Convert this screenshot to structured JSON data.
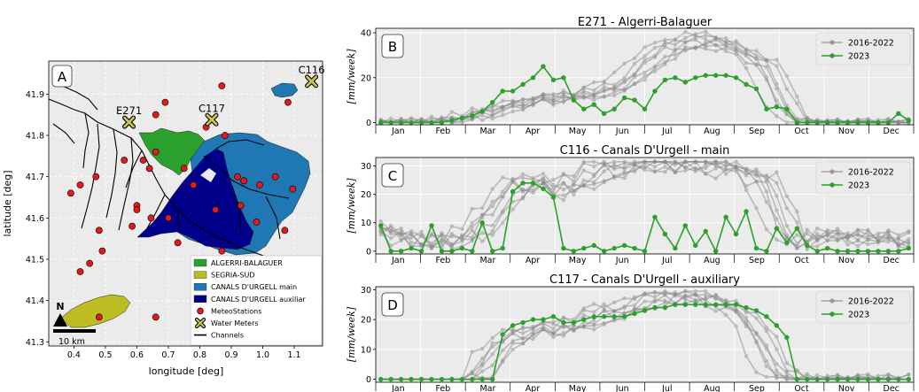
{
  "colors": {
    "history": "#888888",
    "year2023": "#2ca02c",
    "algerri": "#2ca02c",
    "segria": "#bcbd22",
    "urgell_main": "#1f77b4",
    "urgell_aux": "#00008b",
    "meteo": "#e31a1c",
    "meter": "#c8c84b",
    "panel_bg": "#ebebeb"
  },
  "map": {
    "panel_label": "A",
    "xlabel": "longitude [deg]",
    "ylabel": "latitude [deg]",
    "xlim": [
      0.32,
      1.19
    ],
    "ylim": [
      41.29,
      41.98
    ],
    "xticks": [
      "0.4",
      "0.5",
      "0.6",
      "0.7",
      "0.8",
      "0.9",
      "1.0",
      "1.1"
    ],
    "yticks": [
      "41.3",
      "41.4",
      "41.5",
      "41.6",
      "41.7",
      "41.8",
      "41.9"
    ],
    "scalebar": "10 km",
    "north": "N",
    "sites": [
      {
        "label": "E271",
        "lon": 0.575,
        "lat": 41.832
      },
      {
        "label": "C117",
        "lon": 0.838,
        "lat": 41.838
      },
      {
        "label": "C116",
        "lon": 1.155,
        "lat": 41.931
      }
    ],
    "meteo_stations": [
      [
        0.39,
        41.66
      ],
      [
        0.42,
        41.68
      ],
      [
        0.56,
        41.74
      ],
      [
        0.47,
        41.7
      ],
      [
        0.45,
        41.49
      ],
      [
        0.42,
        41.47
      ],
      [
        0.48,
        41.57
      ],
      [
        0.49,
        41.52
      ],
      [
        0.585,
        41.58
      ],
      [
        0.6,
        41.63
      ],
      [
        0.62,
        41.74
      ],
      [
        0.66,
        41.76
      ],
      [
        0.66,
        41.85
      ],
      [
        0.69,
        41.88
      ],
      [
        0.645,
        41.6
      ],
      [
        0.64,
        41.72
      ],
      [
        0.82,
        41.82
      ],
      [
        0.87,
        41.92
      ],
      [
        0.92,
        41.7
      ],
      [
        0.94,
        41.69
      ],
      [
        0.99,
        41.68
      ],
      [
        1.04,
        41.7
      ],
      [
        1.08,
        41.88
      ],
      [
        1.095,
        41.67
      ],
      [
        1.07,
        41.57
      ],
      [
        0.93,
        41.63
      ],
      [
        0.98,
        41.59
      ],
      [
        0.85,
        41.62
      ],
      [
        0.78,
        41.68
      ],
      [
        0.75,
        41.72
      ],
      [
        0.73,
        41.54
      ],
      [
        0.87,
        41.52
      ],
      [
        0.66,
        41.36
      ],
      [
        0.48,
        41.36
      ],
      [
        0.88,
        41.8
      ],
      [
        0.7,
        41.6
      ],
      [
        0.6,
        41.62
      ]
    ],
    "legend": [
      {
        "label": "ALGERRI-BALAGUER",
        "kind": "patch",
        "color": "#2ca02c"
      },
      {
        "label": "SEGRIA-SUD",
        "kind": "patch",
        "color": "#bcbd22"
      },
      {
        "label": "CANALS D'URGELL main",
        "kind": "patch",
        "color": "#1f77b4"
      },
      {
        "label": "CANALS D'URGELL auxiliar",
        "kind": "patch",
        "color": "#00008b"
      },
      {
        "label": "MeteoStations",
        "kind": "dot",
        "color": "#e31a1c"
      },
      {
        "label": "Water Meters",
        "kind": "x",
        "color": "#c8c84b"
      },
      {
        "label": "Channels",
        "kind": "line",
        "color": "#000000"
      }
    ]
  },
  "chart_data": [
    {
      "type": "line",
      "panel_label": "B",
      "title": "E271 - Algerri-Balaguer",
      "ylabel": "[mm/week]",
      "months": [
        "Jan",
        "Feb",
        "Mar",
        "Apr",
        "May",
        "Jun",
        "Jul",
        "Aug",
        "Sep",
        "Oct",
        "Nov",
        "Dec"
      ],
      "ylim": [
        -1,
        42
      ],
      "yticks": [
        0,
        20,
        40
      ],
      "legend": [
        "2016-2022",
        "2023"
      ],
      "history_count": 7,
      "anchors": [
        [
          1,
          0
        ],
        [
          3,
          0
        ],
        [
          5,
          0
        ],
        [
          7,
          1
        ],
        [
          9,
          2
        ],
        [
          11,
          4
        ],
        [
          13,
          7
        ],
        [
          15,
          9
        ],
        [
          17,
          10
        ],
        [
          19,
          12
        ],
        [
          21,
          13
        ],
        [
          23,
          14
        ],
        [
          25,
          19
        ],
        [
          27,
          26
        ],
        [
          29,
          33
        ],
        [
          31,
          36
        ],
        [
          33,
          37
        ],
        [
          35,
          35
        ],
        [
          37,
          30
        ],
        [
          39,
          24
        ],
        [
          40,
          12
        ],
        [
          41,
          4
        ],
        [
          42,
          1
        ],
        [
          44,
          0
        ],
        [
          48,
          0
        ],
        [
          52,
          0
        ]
      ],
      "series_2023": [
        0,
        0,
        0,
        0,
        0,
        0,
        0,
        1,
        2,
        3,
        5,
        9,
        14,
        14,
        17,
        20,
        25,
        19,
        20,
        10,
        6,
        8,
        4,
        6,
        11,
        10,
        6,
        14,
        19,
        20,
        18,
        20,
        21,
        21,
        21,
        20,
        17,
        15,
        6,
        7,
        6,
        0,
        0,
        0,
        0,
        0,
        0,
        0,
        0,
        0,
        0,
        4,
        1
      ]
    },
    {
      "type": "line",
      "panel_label": "C",
      "title": "C116 - Canals D'Urgell - main",
      "ylabel": "[mm/week]",
      "months": [
        "Jan",
        "Feb",
        "Mar",
        "Apr",
        "May",
        "Jun",
        "Jul",
        "Aug",
        "Sep",
        "Oct",
        "Nov",
        "Dec"
      ],
      "ylim": [
        -1,
        33
      ],
      "yticks": [
        0,
        10,
        20,
        30
      ],
      "legend": [
        "2016-2022",
        "2023"
      ],
      "history_count": 7,
      "anchors": [
        [
          1,
          8
        ],
        [
          2,
          6
        ],
        [
          4,
          4
        ],
        [
          6,
          4
        ],
        [
          8,
          4
        ],
        [
          10,
          6
        ],
        [
          12,
          14
        ],
        [
          14,
          24
        ],
        [
          16,
          24
        ],
        [
          18,
          21
        ],
        [
          20,
          25
        ],
        [
          22,
          28
        ],
        [
          24,
          30
        ],
        [
          26,
          31
        ],
        [
          28,
          31
        ],
        [
          30,
          31
        ],
        [
          32,
          31
        ],
        [
          34,
          30
        ],
        [
          36,
          29
        ],
        [
          38,
          26
        ],
        [
          39,
          22
        ],
        [
          40,
          14
        ],
        [
          41,
          4
        ],
        [
          42,
          2
        ],
        [
          43,
          5
        ],
        [
          45,
          6
        ],
        [
          47,
          5
        ],
        [
          49,
          5
        ],
        [
          51,
          5
        ],
        [
          52,
          4
        ]
      ],
      "series_2023": [
        9,
        0,
        0,
        1,
        0,
        9,
        0,
        0,
        1,
        0,
        10,
        0,
        1,
        21,
        24,
        24,
        22,
        19,
        1,
        0,
        1,
        2,
        0,
        1,
        2,
        1,
        0,
        12,
        6,
        1,
        9,
        2,
        7,
        0,
        12,
        6,
        14,
        1,
        0,
        8,
        3,
        8,
        2,
        0,
        1,
        0,
        0,
        0,
        0,
        0,
        0,
        0,
        1
      ]
    },
    {
      "type": "line",
      "panel_label": "D",
      "title": "C117 - Canals D'Urgell - auxiliary",
      "ylabel": "[mm/week]",
      "months": [
        "Jan",
        "Feb",
        "Mar",
        "Apr",
        "May",
        "Jun",
        "Jul",
        "Aug",
        "Sep",
        "Oct",
        "Nov",
        "Dec"
      ],
      "ylim": [
        -1,
        31
      ],
      "yticks": [
        0,
        10,
        20,
        30
      ],
      "legend": [
        "2016-2022",
        "2023"
      ],
      "history_count": 7,
      "anchors": [
        [
          1,
          0
        ],
        [
          10,
          0
        ],
        [
          11,
          3
        ],
        [
          12,
          10
        ],
        [
          14,
          15
        ],
        [
          16,
          16
        ],
        [
          18,
          17
        ],
        [
          20,
          19
        ],
        [
          22,
          21
        ],
        [
          24,
          23
        ],
        [
          26,
          25
        ],
        [
          28,
          27
        ],
        [
          30,
          28
        ],
        [
          32,
          28
        ],
        [
          34,
          26
        ],
        [
          36,
          23
        ],
        [
          37,
          20
        ],
        [
          38,
          14
        ],
        [
          39,
          7
        ],
        [
          40,
          2
        ],
        [
          41,
          0
        ],
        [
          45,
          0
        ],
        [
          52,
          0
        ]
      ],
      "series_2023": [
        0,
        0,
        0,
        0,
        0,
        0,
        0,
        0,
        0,
        0,
        0,
        0,
        15,
        18,
        19,
        20,
        20,
        21,
        19,
        19,
        20,
        21,
        21,
        21,
        21,
        22,
        23,
        24,
        24,
        25,
        25,
        25,
        25,
        25,
        25,
        25,
        24,
        23,
        21,
        18,
        14,
        0,
        0,
        0,
        0,
        0,
        0,
        0,
        0,
        0,
        0,
        0,
        0
      ]
    }
  ]
}
